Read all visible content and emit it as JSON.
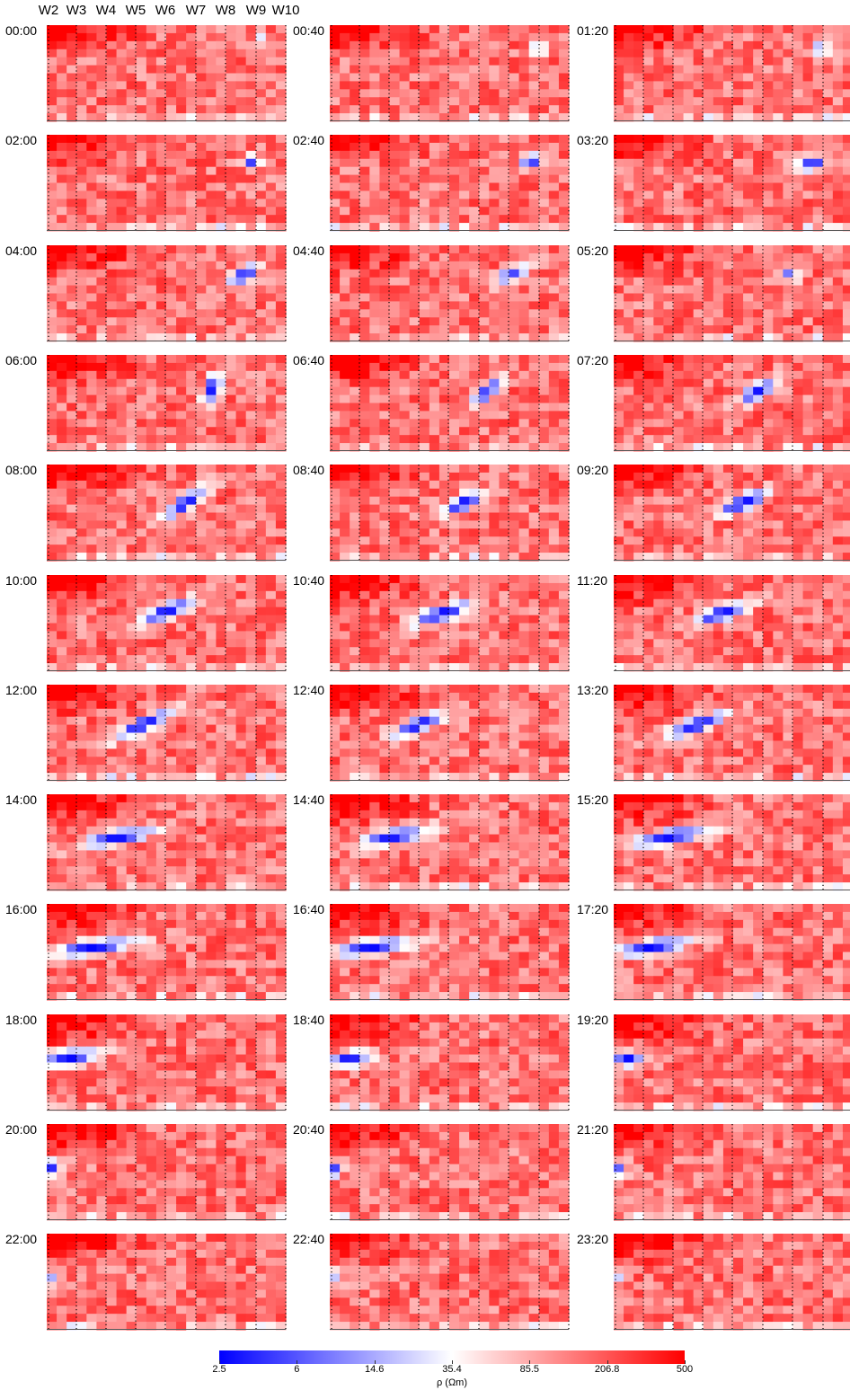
{
  "chart_data": {
    "type": "heatmap",
    "title": "",
    "xlabel": "",
    "ylabel": "",
    "wells": [
      "W2",
      "W3",
      "W4",
      "W5",
      "W6",
      "W7",
      "W8",
      "W9",
      "W10"
    ],
    "times": [
      "00:00",
      "00:40",
      "01:20",
      "02:00",
      "02:40",
      "03:20",
      "04:00",
      "04:40",
      "05:20",
      "06:00",
      "06:40",
      "07:20",
      "08:00",
      "08:40",
      "09:20",
      "10:00",
      "10:40",
      "11:20",
      "12:00",
      "12:40",
      "13:20",
      "14:00",
      "14:40",
      "15:20",
      "16:00",
      "16:40",
      "17:20",
      "18:00",
      "18:40",
      "19:20",
      "20:00",
      "20:40",
      "21:20",
      "22:00",
      "22:40",
      "23:20"
    ],
    "grid": {
      "rows": 12,
      "cols": 3
    },
    "colorbar": {
      "label": "ρ (Ωm)",
      "scale": "log",
      "ticks": [
        "2.5",
        "6",
        "14.6",
        "35.4",
        "85.5",
        "206.8",
        "500"
      ],
      "range": [
        2.5,
        500
      ],
      "colors": {
        "low": "#0000ff",
        "mid": "#ffffff",
        "high": "#ff0000"
      }
    },
    "background_resistivity": 150,
    "low_resistivity_plume": [
      {
        "time": "00:00",
        "center_x": 0.89,
        "center_y": 0.14,
        "length": 0.06,
        "angle": 0,
        "min_rho": 25
      },
      {
        "time": "00:40",
        "center_x": 0.87,
        "center_y": 0.25,
        "length": 0.07,
        "angle": 0,
        "min_rho": 10
      },
      {
        "time": "01:20",
        "center_x": 0.87,
        "center_y": 0.25,
        "length": 0.07,
        "angle": 0,
        "min_rho": 6
      },
      {
        "time": "02:00",
        "center_x": 0.86,
        "center_y": 0.28,
        "length": 0.08,
        "angle": 0,
        "min_rho": 4
      },
      {
        "time": "02:40",
        "center_x": 0.84,
        "center_y": 0.28,
        "length": 0.1,
        "angle": 0,
        "min_rho": 3.5
      },
      {
        "time": "03:20",
        "center_x": 0.83,
        "center_y": 0.3,
        "length": 0.14,
        "angle": -15,
        "min_rho": 3
      },
      {
        "time": "04:00",
        "center_x": 0.83,
        "center_y": 0.3,
        "length": 0.16,
        "angle": -30,
        "min_rho": 3
      },
      {
        "time": "04:40",
        "center_x": 0.76,
        "center_y": 0.3,
        "length": 0.18,
        "angle": -25,
        "min_rho": 5
      },
      {
        "time": "05:20",
        "center_x": 0.74,
        "center_y": 0.3,
        "length": 0.08,
        "angle": 0,
        "min_rho": 6
      },
      {
        "time": "06:00",
        "center_x": 0.69,
        "center_y": 0.35,
        "length": 0.16,
        "angle": -65,
        "min_rho": 3
      },
      {
        "time": "06:40",
        "center_x": 0.66,
        "center_y": 0.38,
        "length": 0.18,
        "angle": -45,
        "min_rho": 3
      },
      {
        "time": "07:20",
        "center_x": 0.6,
        "center_y": 0.38,
        "length": 0.2,
        "angle": -30,
        "min_rho": 3
      },
      {
        "time": "08:00",
        "center_x": 0.58,
        "center_y": 0.4,
        "length": 0.24,
        "angle": -35,
        "min_rho": 2.5
      },
      {
        "time": "08:40",
        "center_x": 0.56,
        "center_y": 0.4,
        "length": 0.22,
        "angle": -25,
        "min_rho": 2.5
      },
      {
        "time": "09:20",
        "center_x": 0.54,
        "center_y": 0.4,
        "length": 0.26,
        "angle": -22,
        "min_rho": 2.5
      },
      {
        "time": "10:00",
        "center_x": 0.5,
        "center_y": 0.38,
        "length": 0.28,
        "angle": -22,
        "min_rho": 2.5
      },
      {
        "time": "10:40",
        "center_x": 0.47,
        "center_y": 0.4,
        "length": 0.3,
        "angle": -18,
        "min_rho": 2.5
      },
      {
        "time": "11:20",
        "center_x": 0.45,
        "center_y": 0.4,
        "length": 0.28,
        "angle": -18,
        "min_rho": 2.5
      },
      {
        "time": "12:00",
        "center_x": 0.4,
        "center_y": 0.42,
        "length": 0.3,
        "angle": -25,
        "min_rho": 2.5
      },
      {
        "time": "12:40",
        "center_x": 0.37,
        "center_y": 0.42,
        "length": 0.28,
        "angle": -22,
        "min_rho": 2.5
      },
      {
        "time": "13:20",
        "center_x": 0.35,
        "center_y": 0.42,
        "length": 0.3,
        "angle": -20,
        "min_rho": 2.5
      },
      {
        "time": "14:00",
        "center_x": 0.3,
        "center_y": 0.45,
        "length": 0.34,
        "angle": -12,
        "min_rho": 2.5
      },
      {
        "time": "14:40",
        "center_x": 0.27,
        "center_y": 0.44,
        "length": 0.32,
        "angle": -12,
        "min_rho": 2.5
      },
      {
        "time": "15:20",
        "center_x": 0.24,
        "center_y": 0.44,
        "length": 0.36,
        "angle": -10,
        "min_rho": 2.5
      },
      {
        "time": "16:00",
        "center_x": 0.2,
        "center_y": 0.45,
        "length": 0.4,
        "angle": -8,
        "min_rho": 2.5
      },
      {
        "time": "16:40",
        "center_x": 0.18,
        "center_y": 0.45,
        "length": 0.38,
        "angle": -8,
        "min_rho": 2.5
      },
      {
        "time": "17:20",
        "center_x": 0.16,
        "center_y": 0.45,
        "length": 0.34,
        "angle": -8,
        "min_rho": 2.5
      },
      {
        "time": "18:00",
        "center_x": 0.1,
        "center_y": 0.45,
        "length": 0.28,
        "angle": -8,
        "min_rho": 2.5
      },
      {
        "time": "18:40",
        "center_x": 0.08,
        "center_y": 0.47,
        "length": 0.2,
        "angle": -8,
        "min_rho": 2.5
      },
      {
        "time": "19:20",
        "center_x": 0.06,
        "center_y": 0.47,
        "length": 0.14,
        "angle": 0,
        "min_rho": 2.5
      },
      {
        "time": "20:00",
        "center_x": 0.03,
        "center_y": 0.45,
        "length": 0.06,
        "angle": 0,
        "min_rho": 2.5
      },
      {
        "time": "20:40",
        "center_x": 0.03,
        "center_y": 0.47,
        "length": 0.05,
        "angle": 0,
        "min_rho": 3
      },
      {
        "time": "21:20",
        "center_x": 0.03,
        "center_y": 0.47,
        "length": 0.05,
        "angle": 0,
        "min_rho": 4
      },
      {
        "time": "22:00",
        "center_x": 0.03,
        "center_y": 0.45,
        "length": 0.04,
        "angle": 0,
        "min_rho": 12
      },
      {
        "time": "22:40",
        "center_x": 0.03,
        "center_y": 0.45,
        "length": 0.04,
        "angle": 0,
        "min_rho": 15
      },
      {
        "time": "23:20",
        "center_x": 0.03,
        "center_y": 0.45,
        "length": 0.04,
        "angle": 0,
        "min_rho": 18
      }
    ]
  }
}
